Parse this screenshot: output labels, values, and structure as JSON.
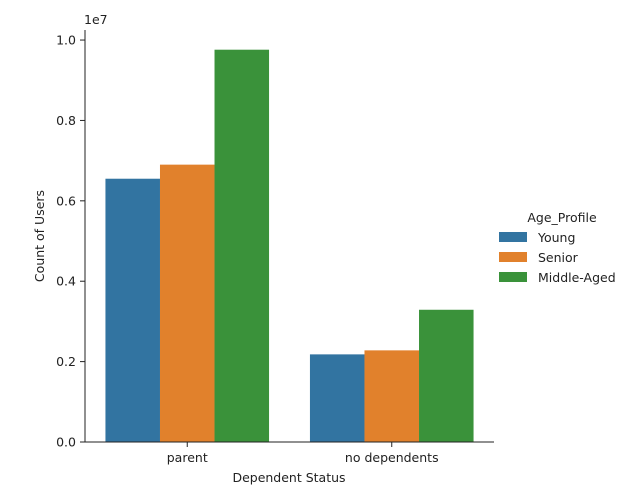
{
  "chart_data": {
    "type": "bar",
    "categories": [
      "parent",
      "no dependents"
    ],
    "series": [
      {
        "name": "Young",
        "values": [
          6550000,
          2180000
        ],
        "color": "#3274a1"
      },
      {
        "name": "Senior",
        "values": [
          6900000,
          2280000
        ],
        "color": "#e1812c"
      },
      {
        "name": "Middle-Aged",
        "values": [
          9760000,
          3290000
        ],
        "color": "#3a923a"
      }
    ],
    "title": "",
    "xlabel": "Dependent Status",
    "ylabel": "Count of Users",
    "y_scale_label": "1e7",
    "y_tick_values": [
      0,
      2000000,
      4000000,
      6000000,
      8000000,
      10000000
    ],
    "y_tick_labels": [
      "0.0",
      "0.2",
      "0.4",
      "0.6",
      "0.8",
      "1.0"
    ],
    "ylim": [
      0,
      10250000
    ],
    "grid": false,
    "legend": {
      "title": "Age_Profile",
      "placement": "right",
      "entries": [
        "Young",
        "Senior",
        "Middle-Aged"
      ]
    }
  }
}
